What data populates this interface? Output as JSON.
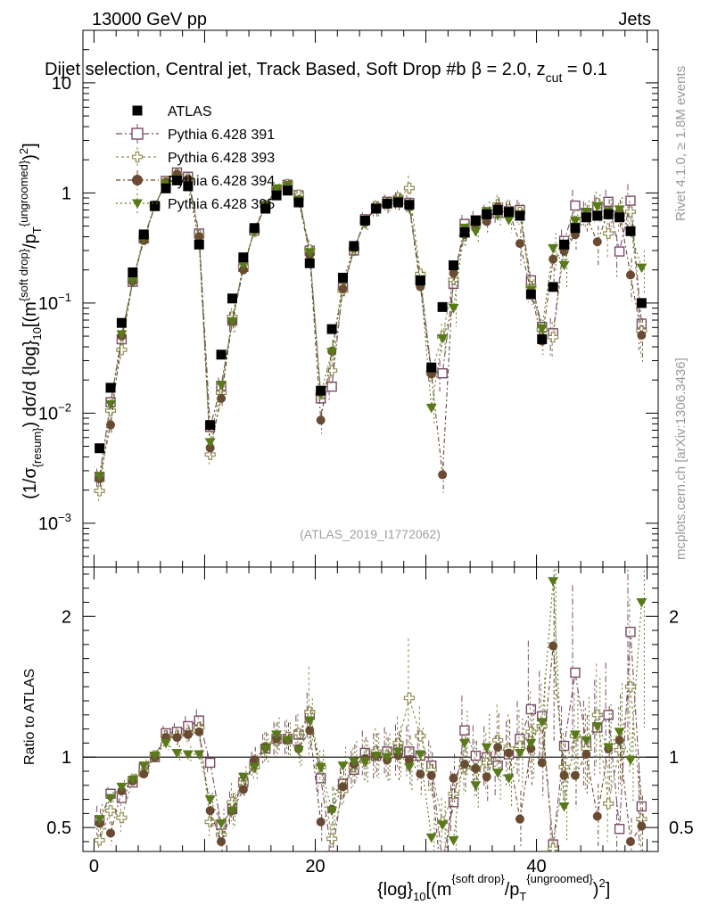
{
  "header": {
    "energy_label": "13000 GeV pp",
    "category_label": "Jets",
    "selection_title": "Dijet selection, Central jet, Track Based, Soft Drop #b",
    "beta_label": "β = 2.0, z",
    "zcut_sub": "cut",
    "zcut_value": " = 0.1"
  },
  "side_labels": {
    "rivet": "Rivet 4.1.0, ≥ 1.8M events",
    "mcplots": "mcplots.cern.ch [arXiv:1306.3436]"
  },
  "watermark": "(ATLAS_2019_I1772062)",
  "axes": {
    "main_ylabel": "(1/σ{resum}) dσ/d {log}10[(m^{soft drop}/p_T^{ungroomed})^2]",
    "ratio_ylabel": "Ratio to ATLAS",
    "xlabel": "{log}10[(m^{soft drop}/p_T^{ungroomed})^2]"
  },
  "chart_data": {
    "type": "scatter",
    "title": "Dijet selection, Central jet, Track Based, Soft Drop",
    "x_range": [
      -1,
      51
    ],
    "y_range": [
      0.0004,
      30
    ],
    "y_scale": "log",
    "ratio_range": [
      0.33,
      2.35
    ],
    "x_ticks": [
      0,
      20,
      40
    ],
    "y_ticks": [
      {
        "value": 0.001,
        "base": "10",
        "exp": "−3"
      },
      {
        "value": 0.01,
        "base": "10",
        "exp": "−2"
      },
      {
        "value": 0.1,
        "base": "10",
        "exp": "−1"
      },
      {
        "value": 1,
        "base": "1",
        "exp": ""
      },
      {
        "value": 10,
        "base": "10",
        "exp": ""
      }
    ],
    "ratio_ticks": [
      0.5,
      1,
      2
    ],
    "legend_position": "top-left",
    "data": {
      "name": "ATLAS",
      "color": "#000000",
      "x": [
        0.5,
        1.5,
        2.5,
        3.5,
        4.5,
        5.5,
        6.5,
        7.5,
        8.5,
        9.5,
        10.5,
        11.5,
        12.5,
        13.5,
        14.5,
        15.5,
        16.5,
        17.5,
        18.5,
        19.5,
        20.5,
        21.5,
        22.5,
        23.5,
        24.5,
        25.5,
        26.5,
        27.5,
        28.5,
        29.5,
        30.5,
        31.5,
        32.5,
        33.5,
        34.5,
        35.5,
        36.5,
        37.5,
        38.5,
        39.5,
        40.5,
        41.5,
        42.5,
        43.5,
        44.5,
        45.5,
        46.5,
        47.5,
        48.5,
        49.5
      ],
      "y": [
        0.0048,
        0.017,
        0.066,
        0.19,
        0.42,
        0.76,
        1.1,
        1.3,
        1.15,
        0.34,
        0.0078,
        0.034,
        0.11,
        0.26,
        0.48,
        0.72,
        0.95,
        1.05,
        0.82,
        0.23,
        0.016,
        0.058,
        0.17,
        0.33,
        0.56,
        0.72,
        0.8,
        0.82,
        0.78,
        0.16,
        0.026,
        0.092,
        0.22,
        0.44,
        0.56,
        0.64,
        0.7,
        0.67,
        0.62,
        0.12,
        0.047,
        0.14,
        0.34,
        0.48,
        0.6,
        0.62,
        0.64,
        0.6,
        0.45,
        0.1
      ]
    },
    "series": [
      {
        "name": "Pythia 6.428 391",
        "color": "#7b4a6a",
        "marker": "open-square",
        "ratio": [
          0.55,
          0.74,
          0.71,
          0.82,
          0.92,
          1.0,
          1.17,
          1.18,
          1.22,
          1.26,
          0.96,
          0.52,
          0.63,
          0.82,
          0.95,
          1.06,
          1.13,
          1.13,
          1.16,
          1.3,
          0.85,
          0.3,
          0.81,
          0.91,
          1.03,
          1.01,
          1.04,
          1.05,
          1.04,
          1.01,
          0.94,
          0.25,
          0.68,
          1.19,
          1.01,
          1.0,
          0.94,
          1.02,
          1.13,
          1.34,
          1.29,
          0.38,
          1.08,
          1.6,
          1.1,
          1.21,
          1.3,
          0.49,
          1.89,
          0.65
        ]
      },
      {
        "name": "Pythia 6.428 393",
        "color": "#8f8e52",
        "marker": "open-cross",
        "ratio": [
          0.41,
          0.62,
          0.57,
          0.84,
          0.9,
          1.01,
          1.15,
          1.15,
          1.17,
          1.21,
          0.54,
          0.45,
          0.68,
          0.82,
          0.93,
          1.07,
          1.12,
          1.14,
          1.17,
          1.32,
          0.93,
          0.42,
          0.76,
          0.93,
          0.97,
          1.04,
          1.01,
          1.1,
          1.42,
          1.15,
          0.91,
          0.54,
          0.74,
          0.93,
          0.92,
          0.96,
          1.12,
          1.06,
          1.08,
          1.18,
          1.22,
          0.35,
          0.93,
          1.15,
          1.06,
          1.3,
          0.67,
          1.05,
          1.5,
          0.56
        ]
      },
      {
        "name": "Pythia 6.428 394",
        "color": "#6a4a33",
        "marker": "filled-circle",
        "ratio": [
          0.53,
          0.46,
          0.76,
          0.83,
          0.88,
          1.0,
          1.14,
          1.14,
          1.16,
          1.18,
          0.62,
          0.4,
          0.62,
          0.77,
          0.98,
          1.07,
          1.13,
          1.12,
          1.06,
          1.19,
          0.54,
          0.63,
          0.79,
          0.95,
          0.99,
          1.01,
          0.98,
          1.01,
          0.98,
          0.88,
          0.87,
          0.03,
          0.85,
          0.95,
          0.92,
          0.86,
          1.07,
          1.03,
          0.56,
          1.06,
          0.96,
          1.79,
          0.87,
          0.87,
          1.02,
          0.58,
          1.06,
          1.12,
          0.4,
          0.51
        ]
      },
      {
        "name": "Pythia 6.428 395",
        "color": "#587a1a",
        "marker": "filled-triangle",
        "ratio": [
          0.56,
          0.71,
          0.79,
          0.84,
          0.94,
          1.01,
          1.1,
          1.03,
          1.02,
          1.02,
          0.7,
          0.53,
          0.62,
          0.86,
          0.93,
          1.06,
          1.16,
          1.12,
          1.05,
          1.26,
          0.93,
          0.62,
          0.94,
          0.97,
          0.97,
          1.01,
          1.0,
          1.04,
          0.93,
          1.02,
          0.43,
          0.52,
          0.41,
          1.1,
          0.8,
          1.07,
          0.89,
          0.85,
          1.03,
          1.1,
          1.25,
          2.25,
          0.65,
          1.16,
          1.12,
          1.22,
          1.07,
          1.18,
          0.98,
          2.1
        ]
      }
    ]
  }
}
